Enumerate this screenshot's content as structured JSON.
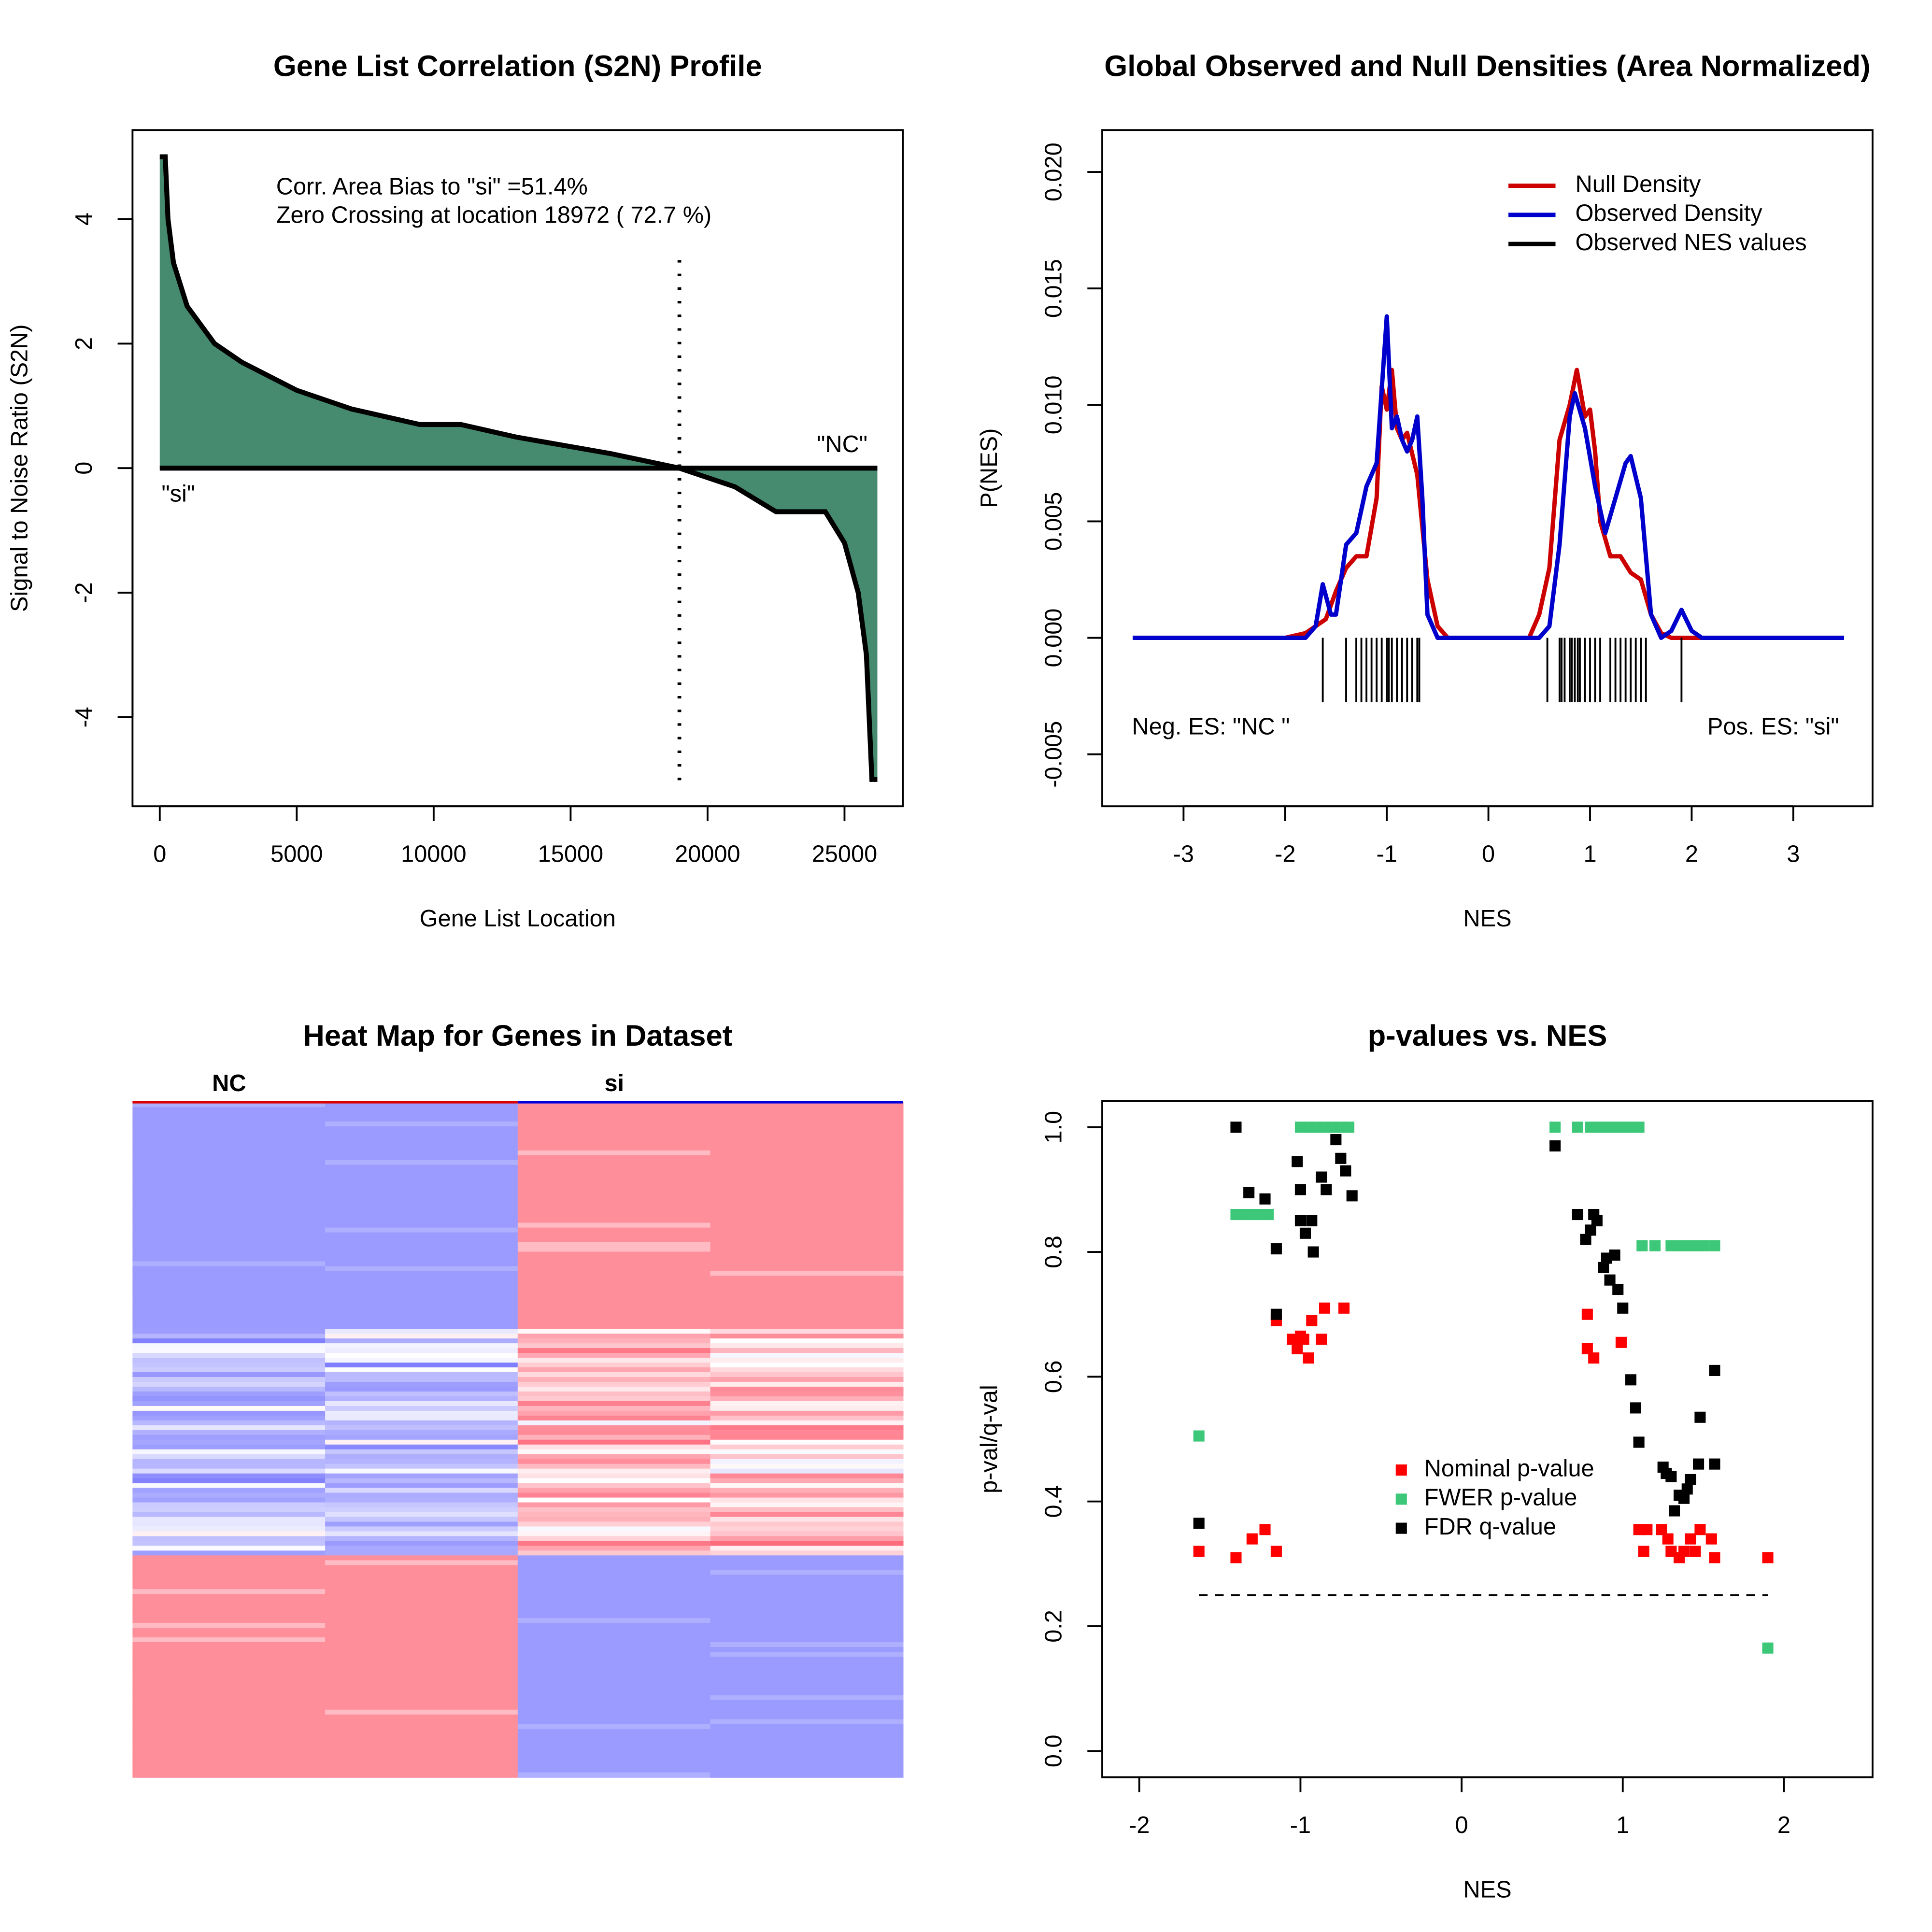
{
  "chart_data": [
    {
      "type": "area",
      "title": "Gene List Correlation (S2N) Profile",
      "xlabel": "Gene List Location",
      "ylabel": "Signal to Noise Ratio (S2N)",
      "annotations": [
        "Corr. Area Bias to \"si\" =51.4%",
        "Zero Crossing at location  18972  ( 72.7  %)",
        "\"NC\"",
        "\"si\""
      ],
      "x": [
        0,
        200,
        300,
        500,
        1000,
        2000,
        3000,
        5000,
        7000,
        9500,
        11000,
        13000,
        16500,
        18972,
        21000,
        22500,
        24300,
        25000,
        25500,
        25800,
        26000,
        26200
      ],
      "values": [
        5,
        5,
        4,
        3.3,
        2.6,
        2.0,
        1.7,
        1.25,
        0.95,
        0.7,
        0.7,
        0.5,
        0.23,
        0,
        -0.3,
        -0.7,
        -0.7,
        -1.2,
        -2,
        -3,
        -5,
        -5
      ],
      "color": "#468a70",
      "vline": 18972,
      "xlim": [
        -995,
        27130
      ],
      "ylim": [
        -5.43,
        5.43
      ],
      "xticks": [
        0,
        5000,
        10000,
        15000,
        20000,
        25000
      ],
      "yticks": [
        -4,
        -2,
        0,
        2,
        4
      ]
    },
    {
      "type": "density",
      "title": "Global Observed and Null Densities (Area Normalized)",
      "xlabel": "NES",
      "ylabel": "P(NES)",
      "annotations": [
        "Neg. ES: \"NC \"",
        "Pos. ES: \"si\""
      ],
      "series": [
        {
          "name": "Null Density",
          "color": "#cc0000",
          "x": [
            -3.5,
            -2,
            -1.8,
            -1.6,
            -1.5,
            -1.4,
            -1.3,
            -1.2,
            -1.1,
            -1.05,
            -1.0,
            -0.95,
            -0.9,
            -0.85,
            -0.8,
            -0.7,
            -0.6,
            -0.5,
            -0.4,
            -0.3,
            0,
            0.4,
            0.5,
            0.6,
            0.7,
            0.8,
            0.87,
            0.95,
            1.0,
            1.05,
            1.1,
            1.2,
            1.3,
            1.4,
            1.5,
            1.6,
            1.7,
            1.8,
            2,
            3.5
          ],
          "values": [
            0,
            0,
            0.0002,
            0.0008,
            0.002,
            0.003,
            0.0035,
            0.0035,
            0.006,
            0.0108,
            0.0098,
            0.0115,
            0.009,
            0.0085,
            0.0088,
            0.007,
            0.0025,
            0.0005,
            0,
            0,
            0,
            0,
            0.001,
            0.003,
            0.0085,
            0.01,
            0.0115,
            0.0095,
            0.0098,
            0.008,
            0.005,
            0.0035,
            0.0035,
            0.0028,
            0.0025,
            0.001,
            0.0002,
            0,
            0,
            0
          ]
        },
        {
          "name": "Observed Density",
          "color": "#0000cc",
          "x": [
            -3.5,
            -1.8,
            -1.7,
            -1.63,
            -1.55,
            -1.5,
            -1.4,
            -1.3,
            -1.2,
            -1.1,
            -1.0,
            -0.95,
            -0.9,
            -0.85,
            -0.8,
            -0.75,
            -0.7,
            -0.65,
            -0.6,
            -0.5,
            0,
            0.5,
            0.6,
            0.7,
            0.8,
            0.85,
            0.95,
            1.05,
            1.15,
            1.25,
            1.35,
            1.4,
            1.5,
            1.6,
            1.7,
            1.8,
            1.9,
            2.0,
            2.1,
            3.5
          ],
          "values": [
            0,
            0,
            0.0005,
            0.0023,
            0.001,
            0.001,
            0.004,
            0.0045,
            0.0065,
            0.0075,
            0.0138,
            0.009,
            0.0095,
            0.0085,
            0.008,
            0.0085,
            0.0095,
            0.006,
            0.001,
            0,
            0,
            0,
            0.0005,
            0.004,
            0.0095,
            0.0105,
            0.009,
            0.0065,
            0.0045,
            0.006,
            0.0075,
            0.0078,
            0.006,
            0.001,
            0,
            0.0003,
            0.0012,
            0.0003,
            0,
            0
          ]
        }
      ],
      "rug": {
        "name": "Observed NES values",
        "color": "#000000",
        "values": [
          -1.63,
          -1.4,
          -1.3,
          -1.25,
          -1.2,
          -1.15,
          -1.1,
          -1.05,
          -1.0,
          -0.98,
          -0.95,
          -0.9,
          -0.85,
          -0.8,
          -0.75,
          -0.7,
          -0.68,
          0.58,
          0.7,
          0.72,
          0.75,
          0.8,
          0.82,
          0.85,
          0.88,
          0.9,
          0.95,
          1.0,
          1.05,
          1.1,
          1.2,
          1.25,
          1.3,
          1.35,
          1.4,
          1.45,
          1.5,
          1.55,
          1.9
        ]
      },
      "xlim": [
        -3.8,
        3.78
      ],
      "ylim": [
        -0.00723,
        0.0218
      ],
      "xticks": [
        -3,
        -2,
        -1,
        0,
        1,
        2,
        3
      ],
      "yticks": [
        -0.005,
        {
          "value": 0,
          "label": "0.000"
        },
        0.005,
        {
          "value": 0.01,
          "label": "0.010"
        },
        0.015,
        {
          "value": 0.02,
          "label": "0.020"
        }
      ]
    },
    {
      "type": "heatmap",
      "title": "Heat Map for Genes in Dataset",
      "column_groups": [
        {
          "name": "NC",
          "color": "#dd0000"
        },
        {
          "name": "si",
          "color": "#0000dd"
        }
      ]
    },
    {
      "type": "scatter",
      "title": "p-values vs. NES",
      "xlabel": "NES",
      "ylabel": "p-val/q-val",
      "hline": 0.25,
      "series": [
        {
          "name": "Nominal p-value",
          "color": "#ff0000",
          "x": [
            -1.63,
            -1.4,
            -1.3,
            -1.22,
            -1.15,
            -1.15,
            -1.05,
            -1.02,
            -1.0,
            -0.98,
            -0.95,
            -0.93,
            -0.87,
            -0.85,
            -0.73,
            0.78,
            0.78,
            0.82,
            0.99,
            1.1,
            1.13,
            1.15,
            1.24,
            1.28,
            1.3,
            1.35,
            1.38,
            1.42,
            1.45,
            1.48,
            1.55,
            1.57,
            1.9
          ],
          "values": [
            0.32,
            0.31,
            0.34,
            0.355,
            0.32,
            0.69,
            0.66,
            0.645,
            0.665,
            0.66,
            0.63,
            0.69,
            0.66,
            0.71,
            0.71,
            0.7,
            0.645,
            0.63,
            0.655,
            0.355,
            0.32,
            0.355,
            0.355,
            0.34,
            0.32,
            0.31,
            0.32,
            0.34,
            0.32,
            0.355,
            0.34,
            0.31,
            0.31
          ]
        },
        {
          "name": "FWER p-value",
          "color": "#3cc878",
          "x": [
            -1.63,
            -1.4,
            -1.35,
            -1.3,
            -1.25,
            -1.2,
            -1.0,
            -0.95,
            -0.9,
            -0.85,
            -0.8,
            -0.75,
            -0.7,
            0.58,
            0.72,
            0.8,
            0.85,
            0.9,
            0.95,
            1.0,
            1.05,
            1.1,
            1.12,
            1.2,
            1.3,
            1.35,
            1.4,
            1.45,
            1.5,
            1.57,
            1.9
          ],
          "values": [
            0.505,
            0.86,
            0.86,
            0.86,
            0.86,
            0.86,
            1,
            1,
            1,
            1,
            1,
            1,
            1,
            1,
            1,
            1,
            1,
            1,
            1,
            1,
            1,
            1,
            0.81,
            0.81,
            0.81,
            0.81,
            0.81,
            0.81,
            0.81,
            0.81,
            0.165
          ]
        },
        {
          "name": "FDR q-value",
          "color": "#000000",
          "x": [
            -1.63,
            -1.4,
            -1.32,
            -1.22,
            -1.15,
            -1.15,
            -1.02,
            -1.0,
            -1.0,
            -0.97,
            -0.93,
            -0.92,
            -0.87,
            -0.84,
            -0.78,
            -0.75,
            -0.72,
            -0.68,
            0.58,
            0.72,
            0.77,
            0.8,
            0.82,
            0.84,
            0.88,
            0.9,
            0.92,
            0.95,
            0.97,
            1.0,
            1.05,
            1.08,
            1.1,
            1.25,
            1.27,
            1.3,
            1.32,
            1.35,
            1.38,
            1.4,
            1.42,
            1.47,
            1.48,
            1.57,
            1.57
          ],
          "values": [
            0.365,
            1.0,
            0.895,
            0.885,
            0.805,
            0.7,
            0.945,
            0.9,
            0.85,
            0.83,
            0.85,
            0.8,
            0.92,
            0.9,
            0.98,
            0.95,
            0.93,
            0.89,
            0.97,
            0.86,
            0.82,
            0.835,
            0.86,
            0.85,
            0.775,
            0.79,
            0.755,
            0.795,
            0.74,
            0.71,
            0.595,
            0.55,
            0.495,
            0.455,
            0.445,
            0.44,
            0.385,
            0.41,
            0.405,
            0.42,
            0.435,
            0.46,
            0.535,
            0.61,
            0.46
          ]
        }
      ],
      "xlim": [
        -2.23,
        2.55
      ],
      "ylim": [
        -0.042,
        1.042
      ],
      "xticks": [
        -2,
        -1,
        0,
        1,
        2
      ],
      "yticks": [
        {
          "value": 0,
          "label": "0.0"
        },
        0.2,
        0.4,
        0.6,
        0.8,
        {
          "value": 1,
          "label": "1.0"
        }
      ]
    }
  ]
}
